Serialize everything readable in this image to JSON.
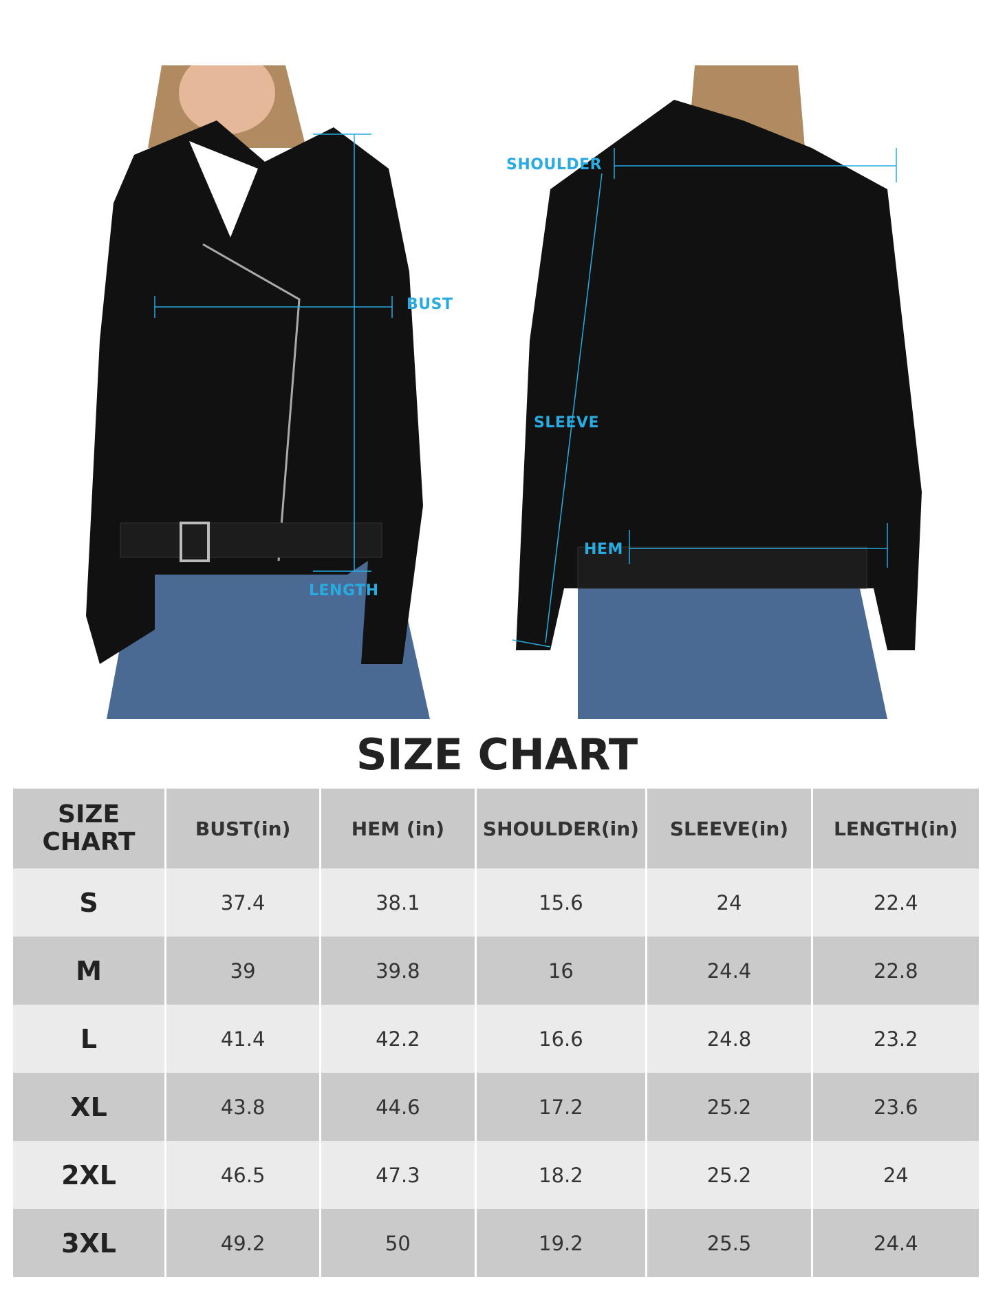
{
  "measurements": {
    "bust": "BUST",
    "length": "LENGTH",
    "shoulder": "SHOULDER",
    "sleeve": "SLEEVE",
    "hem": "HEM"
  },
  "colors": {
    "measure_line": "#29abe2",
    "jacket": "#111111",
    "jeans": "#4a6a94",
    "header_bg": "#c9c9c9",
    "row_light": "#ebebeb",
    "row_dark": "#cacaca"
  },
  "title": "SIZE CHART",
  "table": {
    "corner": [
      "SIZE",
      "CHART"
    ],
    "headers": [
      "BUST(in)",
      "HEM (in)",
      "SHOULDER(in)",
      "SLEEVE(in)",
      "LENGTH(in)"
    ],
    "rows": [
      {
        "size": "S",
        "values": [
          "37.4",
          "38.1",
          "15.6",
          "24",
          "22.4"
        ]
      },
      {
        "size": "M",
        "values": [
          "39",
          "39.8",
          "16",
          "24.4",
          "22.8"
        ]
      },
      {
        "size": "L",
        "values": [
          "41.4",
          "42.2",
          "16.6",
          "24.8",
          "23.2"
        ]
      },
      {
        "size": "XL",
        "values": [
          "43.8",
          "44.6",
          "17.2",
          "25.2",
          "23.6"
        ]
      },
      {
        "size": "2XL",
        "values": [
          "46.5",
          "47.3",
          "18.2",
          "25.2",
          "24"
        ]
      },
      {
        "size": "3XL",
        "values": [
          "49.2",
          "50",
          "19.2",
          "25.5",
          "24.4"
        ]
      }
    ]
  }
}
